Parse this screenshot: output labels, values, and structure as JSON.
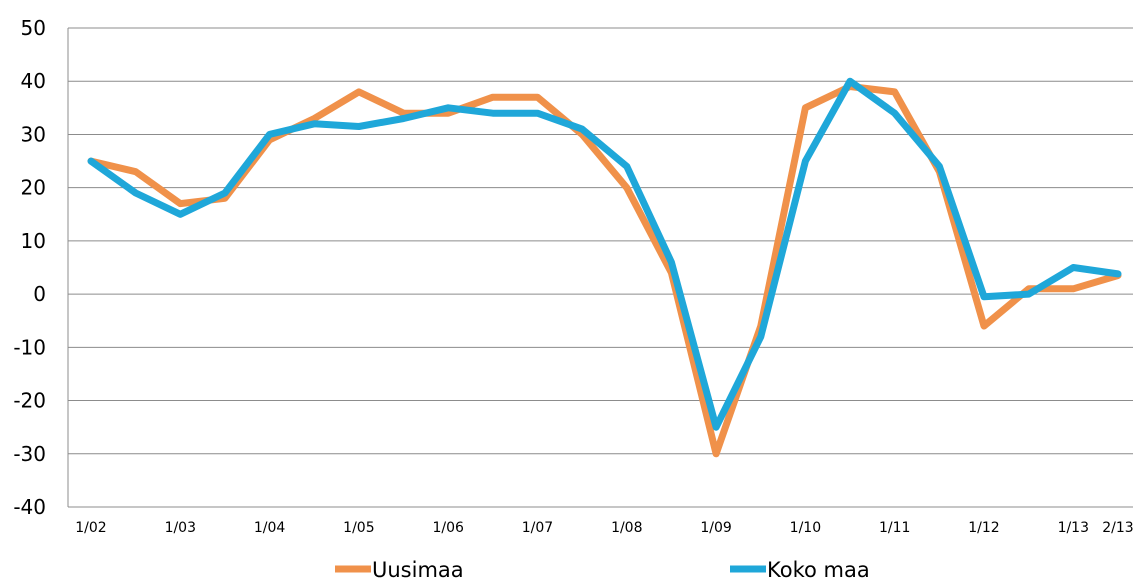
{
  "chart_data": {
    "type": "line",
    "x_tick_labels": [
      "1/02",
      "1/03",
      "1/04",
      "1/05",
      "1/06",
      "1/07",
      "1/08",
      "1/09",
      "1/10",
      "1/11",
      "1/12",
      "1/13",
      "2/13"
    ],
    "x": [
      "1/02",
      "2/02",
      "1/03",
      "2/03",
      "1/04",
      "2/04",
      "1/05",
      "2/05",
      "1/06",
      "2/06",
      "1/07",
      "2/07",
      "1/08",
      "2/08",
      "1/09",
      "2/09",
      "1/10",
      "2/10",
      "1/11",
      "2/11",
      "1/12",
      "2/12",
      "1/13",
      "2/13"
    ],
    "series": [
      {
        "name": "Uusimaa",
        "color": "#F0914A",
        "values": [
          25,
          23,
          17,
          18,
          29,
          33,
          38,
          34,
          34,
          37,
          37,
          30,
          20,
          4,
          -30,
          -6,
          35,
          39,
          38,
          23,
          -6,
          1,
          1,
          3.5
        ]
      },
      {
        "name": "Koko maa",
        "color": "#1FA7D9",
        "values": [
          25,
          19,
          15,
          19,
          30,
          32,
          31.5,
          33,
          35,
          34,
          34,
          31,
          24,
          6,
          -25,
          -8,
          25,
          40,
          34,
          24,
          -0.5,
          0,
          5,
          3.8
        ]
      }
    ],
    "y_ticks": [
      -40,
      -30,
      -20,
      -10,
      0,
      10,
      20,
      30,
      40,
      50
    ],
    "ylim": [
      -40,
      50
    ],
    "grid": "horizontal",
    "legend": "bottom"
  }
}
